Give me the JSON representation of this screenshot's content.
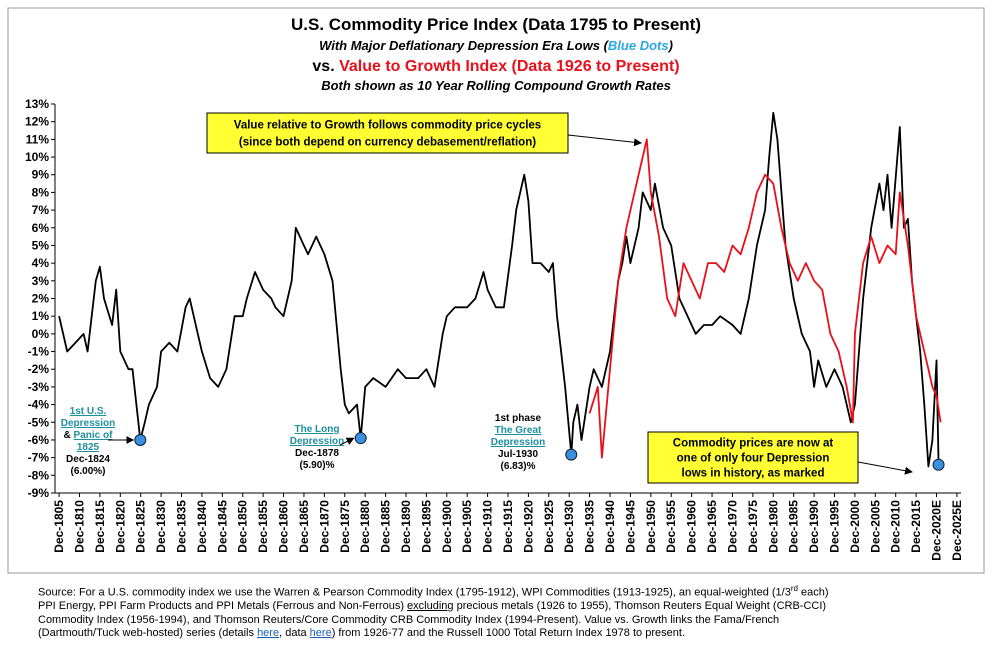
{
  "chart_data": {
    "type": "line",
    "title": "U.S. Commodity Price Index (Data 1795 to Present)",
    "subtitle": [
      {
        "text": "With Major Deflationary Depression Era Lows ("
      },
      {
        "text": "Blue Dots",
        "color": "#29a8e0"
      },
      {
        "text": ")"
      }
    ],
    "subtitle2": [
      {
        "text": "vs. "
      },
      {
        "text": "Value to Growth Index (Data 1926 to Present)",
        "color": "#e8101a"
      }
    ],
    "subtitle3": "Both shown as 10 Year Rolling Compound Growth Rates",
    "xlim": [
      1804,
      2026
    ],
    "ylim": [
      -9,
      13
    ],
    "yticks": [
      {
        "value": 13,
        "label": "13%"
      },
      {
        "value": 12,
        "label": "12%"
      },
      {
        "value": 11,
        "label": "11%"
      },
      {
        "value": 10,
        "label": "10%"
      },
      {
        "value": 9,
        "label": "9%"
      },
      {
        "value": 8,
        "label": "8%"
      },
      {
        "value": 7,
        "label": "7%"
      },
      {
        "value": 6,
        "label": "6%"
      },
      {
        "value": 5,
        "label": "5%"
      },
      {
        "value": 4,
        "label": "4%"
      },
      {
        "value": 3,
        "label": "3%"
      },
      {
        "value": 2,
        "label": "2%"
      },
      {
        "value": 1,
        "label": "1%"
      },
      {
        "value": 0,
        "label": "0%"
      },
      {
        "value": -1,
        "label": "-1%"
      },
      {
        "value": -2,
        "label": "-2%"
      },
      {
        "value": -3,
        "label": "-3%"
      },
      {
        "value": -4,
        "label": "-4%"
      },
      {
        "value": -5,
        "label": "-5%"
      },
      {
        "value": -6,
        "label": "-6%"
      },
      {
        "value": -7,
        "label": "-7%"
      },
      {
        "value": -8,
        "label": "-8%"
      },
      {
        "value": -9,
        "label": "-9%"
      }
    ],
    "xticks": [
      {
        "value": 1805,
        "label": "Dec-1805"
      },
      {
        "value": 1810,
        "label": "Dec-1810"
      },
      {
        "value": 1815,
        "label": "Dec-1815"
      },
      {
        "value": 1820,
        "label": "Dec-1820"
      },
      {
        "value": 1825,
        "label": "Dec-1825"
      },
      {
        "value": 1830,
        "label": "Dec-1830"
      },
      {
        "value": 1835,
        "label": "Dec-1835"
      },
      {
        "value": 1840,
        "label": "Dec-1840"
      },
      {
        "value": 1845,
        "label": "Dec-1845"
      },
      {
        "value": 1850,
        "label": "Dec-1850"
      },
      {
        "value": 1855,
        "label": "Dec-1855"
      },
      {
        "value": 1860,
        "label": "Dec-1860"
      },
      {
        "value": 1865,
        "label": "Dec-1865"
      },
      {
        "value": 1870,
        "label": "Dec-1870"
      },
      {
        "value": 1875,
        "label": "Dec-1875"
      },
      {
        "value": 1880,
        "label": "Dec-1880"
      },
      {
        "value": 1885,
        "label": "Dec-1885"
      },
      {
        "value": 1890,
        "label": "Dec-1890"
      },
      {
        "value": 1895,
        "label": "Dec-1895"
      },
      {
        "value": 1900,
        "label": "Dec-1900"
      },
      {
        "value": 1905,
        "label": "Dec-1905"
      },
      {
        "value": 1910,
        "label": "Dec-1910"
      },
      {
        "value": 1915,
        "label": "Dec-1915"
      },
      {
        "value": 1920,
        "label": "Dec-1920"
      },
      {
        "value": 1925,
        "label": "Dec-1925"
      },
      {
        "value": 1930,
        "label": "Dec-1930"
      },
      {
        "value": 1935,
        "label": "Dec-1935"
      },
      {
        "value": 1940,
        "label": "Dec-1940"
      },
      {
        "value": 1945,
        "label": "Dec-1945"
      },
      {
        "value": 1950,
        "label": "Dec-1950"
      },
      {
        "value": 1955,
        "label": "Dec-1955"
      },
      {
        "value": 1960,
        "label": "Dec-1960"
      },
      {
        "value": 1965,
        "label": "Dec-1965"
      },
      {
        "value": 1970,
        "label": "Dec-1970"
      },
      {
        "value": 1975,
        "label": "Dec-1975"
      },
      {
        "value": 1980,
        "label": "Dec-1980"
      },
      {
        "value": 1985,
        "label": "Dec-1985"
      },
      {
        "value": 1990,
        "label": "Dec-1990"
      },
      {
        "value": 1995,
        "label": "Dec-1995"
      },
      {
        "value": 2000,
        "label": "Dec-2000"
      },
      {
        "value": 2005,
        "label": "Dec-2005"
      },
      {
        "value": 2010,
        "label": "Dec-2010"
      },
      {
        "value": 2015,
        "label": "Dec-2015"
      },
      {
        "value": 2020,
        "label": "Dec-2020E"
      },
      {
        "value": 2025,
        "label": "Dec-2025E"
      }
    ],
    "series": [
      {
        "color": "#000000",
        "x": [
          1805,
          1807,
          1809,
          1811,
          1812,
          1814,
          1815,
          1816,
          1818,
          1819,
          1820,
          1822,
          1823,
          1824.9,
          1826,
          1827,
          1829,
          1830,
          1832,
          1834,
          1836,
          1837,
          1839,
          1840,
          1842,
          1844,
          1846,
          1848,
          1850,
          1851,
          1853,
          1855,
          1857,
          1858,
          1860,
          1862,
          1863,
          1865,
          1866,
          1868,
          1870,
          1872,
          1874,
          1875,
          1876,
          1878,
          1878.9,
          1880,
          1882,
          1885,
          1888,
          1890,
          1893,
          1895,
          1897,
          1899,
          1900,
          1902,
          1905,
          1907,
          1909,
          1910,
          1912,
          1914,
          1916,
          1917,
          1918,
          1919,
          1920,
          1921,
          1923,
          1925,
          1926,
          1927,
          1928,
          1929,
          1930.5,
          1931,
          1932,
          1933,
          1935,
          1936,
          1938,
          1940,
          1942,
          1943,
          1944,
          1945,
          1947,
          1948,
          1950,
          1951,
          1953,
          1955,
          1957,
          1959,
          1961,
          1963,
          1965,
          1967,
          1970,
          1972,
          1974,
          1976,
          1978,
          1979,
          1980,
          1981,
          1983,
          1985,
          1987,
          1989,
          1990,
          1991,
          1993,
          1995,
          1997,
          1999,
          2000,
          2002,
          2004,
          2006,
          2007,
          2008,
          2009,
          2011,
          2012,
          2013,
          2014,
          2016,
          2017,
          2018,
          2019,
          2020,
          2020.5
        ],
        "values": [
          1,
          -1,
          -0.5,
          0,
          -1,
          3,
          3.8,
          2,
          0.5,
          2.5,
          -1,
          -2,
          -2,
          -6,
          -5,
          -4,
          -3,
          -1,
          -0.5,
          -1,
          1.5,
          2,
          0,
          -1,
          -2.5,
          -3,
          -2,
          1,
          1,
          2,
          3.5,
          2.5,
          2,
          1.5,
          1,
          3,
          6,
          5,
          4.5,
          5.5,
          4.5,
          3,
          -2,
          -4,
          -4.5,
          -4,
          -5.9,
          -3,
          -2.5,
          -3,
          -2,
          -2.5,
          -2.5,
          -2,
          -3,
          0,
          1,
          1.5,
          1.5,
          2,
          3.5,
          2.5,
          1.5,
          1.5,
          5,
          7,
          8,
          9,
          7.5,
          4,
          4,
          3.5,
          4,
          1,
          -1,
          -3,
          -6.83,
          -5,
          -4,
          -6,
          -3,
          -2,
          -3,
          -1,
          3,
          4,
          5.5,
          4,
          6,
          8,
          7,
          8.5,
          6,
          5,
          2,
          1,
          0,
          0.5,
          0.5,
          1,
          0.5,
          0,
          2,
          5,
          7,
          10,
          12.5,
          11,
          5,
          2,
          0,
          -1,
          -3,
          -1.5,
          -3,
          -2,
          -3,
          -5,
          -4,
          2,
          6,
          8.5,
          7,
          9,
          6,
          11.7,
          6,
          6.5,
          3,
          -1,
          -4,
          -7.5,
          -6,
          -1.5,
          -7.4
        ]
      },
      {
        "color": "#e8101a",
        "x": [
          1935,
          1937,
          1938,
          1940,
          1942,
          1944,
          1946,
          1948,
          1949,
          1950,
          1952,
          1954,
          1956,
          1958,
          1960,
          1962,
          1964,
          1966,
          1968,
          1970,
          1972,
          1974,
          1976,
          1978,
          1980,
          1982,
          1984,
          1986,
          1988,
          1990,
          1992,
          1994,
          1996,
          1998,
          1999.5,
          2000,
          2002,
          2004,
          2006,
          2008,
          2010,
          2011,
          2013,
          2015,
          2016,
          2018,
          2019,
          2020,
          2021
        ],
        "values": [
          -4.5,
          -3,
          -7,
          -2,
          3,
          6,
          8,
          10,
          11,
          8,
          5.5,
          2,
          1,
          4,
          3,
          2,
          4,
          4,
          3.5,
          5,
          4.5,
          6,
          8,
          9,
          8.5,
          6,
          4,
          3,
          4,
          3,
          2.5,
          0,
          -1,
          -3,
          -5,
          0,
          4,
          5.5,
          4,
          5,
          4.5,
          8,
          5,
          1,
          0,
          -2,
          -3,
          -3.5,
          -5
        ]
      }
    ],
    "lows": {
      "color": "#3b8fe0",
      "x": [
        1824.9,
        1878.9,
        1930.5,
        2020.5
      ],
      "values": [
        -6.0,
        -5.9,
        -6.83,
        -7.4
      ]
    },
    "annotations": [
      {
        "lines": [
          [
            {
              "text": "1st U.S.",
              "link": true
            }
          ],
          [
            {
              "text": "Depression",
              "link": true
            }
          ],
          [
            {
              "text": "& "
            },
            {
              "text": "Panic of",
              "link": true
            }
          ],
          [
            {
              "text": "1825",
              "link": true
            }
          ],
          [
            {
              "text": "Dec-1824"
            }
          ],
          [
            {
              "text": "(6.00%)"
            }
          ]
        ]
      },
      {
        "lines": [
          [
            {
              "text": "The Long",
              "link": true
            }
          ],
          [
            {
              "text": "Depression",
              "link": true
            }
          ],
          [
            {
              "text": "Dec-1878"
            }
          ],
          [
            {
              "text": "(5.90)%"
            }
          ]
        ]
      },
      {
        "lines": [
          [
            {
              "text": "1st phase"
            }
          ],
          [
            {
              "text": "The Great",
              "link": true
            }
          ],
          [
            {
              "text": "Depression",
              "link": true
            }
          ],
          [
            {
              "text": "Jul-1930"
            }
          ],
          [
            {
              "text": "(6.83)%"
            }
          ]
        ]
      }
    ],
    "callouts": [
      {
        "lines": [
          "Value relative to Growth follows commodity price cycles",
          "(since both depend on currency debasement/reflation)"
        ]
      },
      {
        "lines": [
          "Commodity prices are now at",
          "one of only four Depression",
          "lows in history, as marked"
        ]
      }
    ],
    "footnote": [
      [
        {
          "text": "Source: For a U.S. commodity index we use the Warren & Pearson Commodity Index (1795-1912), WPI Commodities (1913-1925), an equal-weighted (1/3"
        },
        {
          "text": "rd",
          "sup": true
        },
        {
          "text": " each)"
        }
      ],
      [
        {
          "text": "PPI Energy, PPI Farm Products and PPI Metals (Ferrous and Non-Ferrous) "
        },
        {
          "text": "excluding",
          "underline": true
        },
        {
          "text": " precious metals (1926 to 1955), Thomson Reuters Equal Weight (CRB-CCI)"
        }
      ],
      [
        {
          "text": "Commodity Index (1956-1994), and Thomson Reuters/Core Commodity CRB Commodity Index (1994-Present). Value vs. Growth links the Fama/French"
        }
      ],
      [
        {
          "text": "(Dartmouth/Tuck web-hosted) series (details "
        },
        {
          "text": "here",
          "link": true
        },
        {
          "text": ", data "
        },
        {
          "text": "here",
          "link": true
        },
        {
          "text": ") from 1926-77 and the Russell 1000 Total Return Index 1978 to present."
        }
      ]
    ]
  }
}
